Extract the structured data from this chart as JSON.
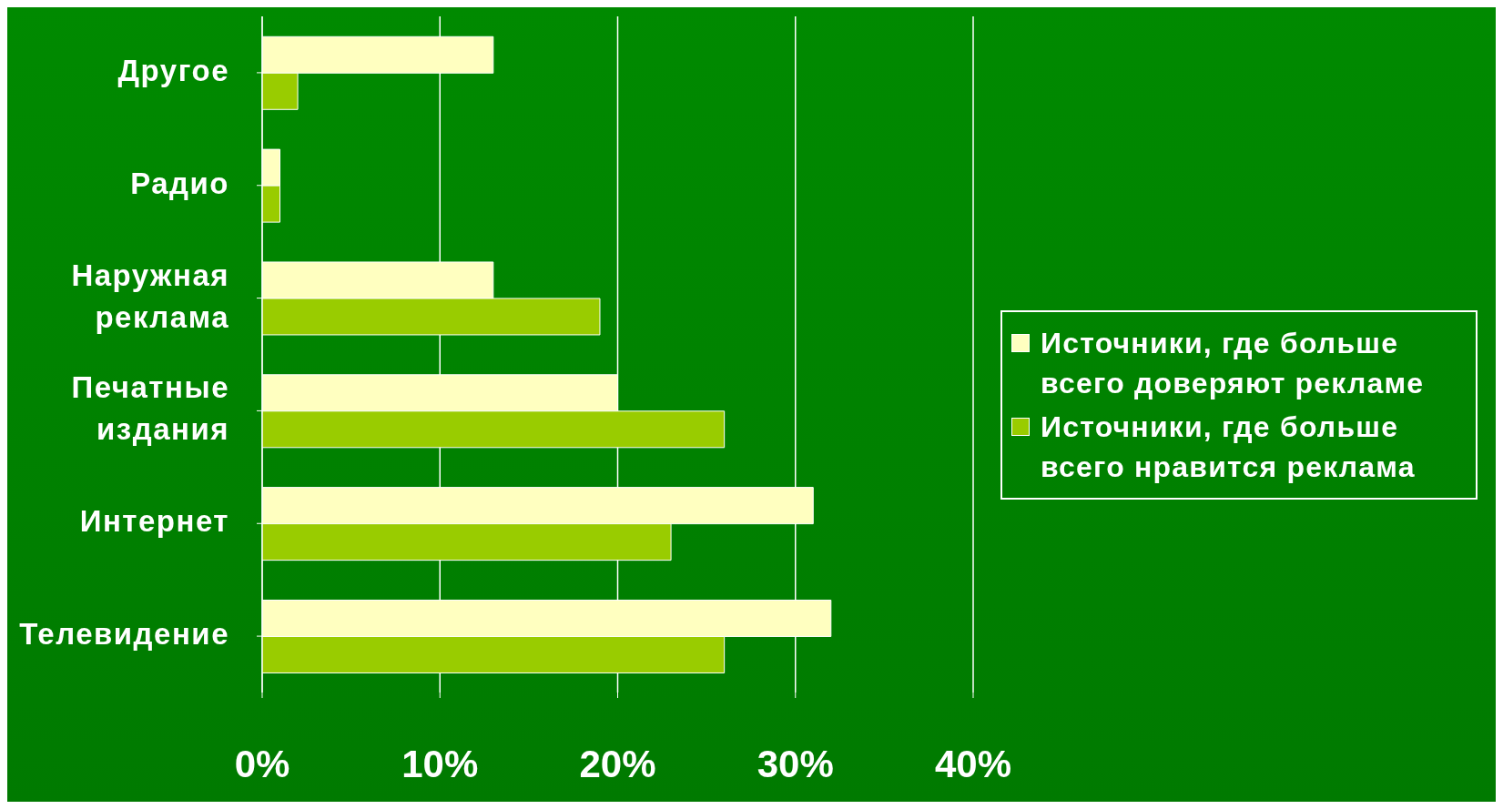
{
  "chart_data": {
    "type": "bar",
    "orientation": "horizontal",
    "categories": [
      "Другое",
      "Радио",
      "Наружная реклама",
      "Печатные издания",
      "Интернет",
      "Телевидение"
    ],
    "series": [
      {
        "name": "Источники, где больше всего доверяют рекламе",
        "color": "#ffffc0",
        "values": [
          13,
          1,
          13,
          20,
          31,
          32
        ]
      },
      {
        "name": "Источники, где больше всего нравится реклама",
        "color": "#99cc00",
        "values": [
          2,
          1,
          19,
          26,
          23,
          26
        ]
      }
    ],
    "xlim": [
      0,
      40
    ],
    "xticks": [
      {
        "value": 0,
        "label": "0%"
      },
      {
        "value": 10,
        "label": "10%"
      },
      {
        "value": 20,
        "label": "20%"
      },
      {
        "value": 30,
        "label": "30%"
      },
      {
        "value": 40,
        "label": "40%"
      }
    ],
    "grid": "x",
    "legend": "right"
  }
}
